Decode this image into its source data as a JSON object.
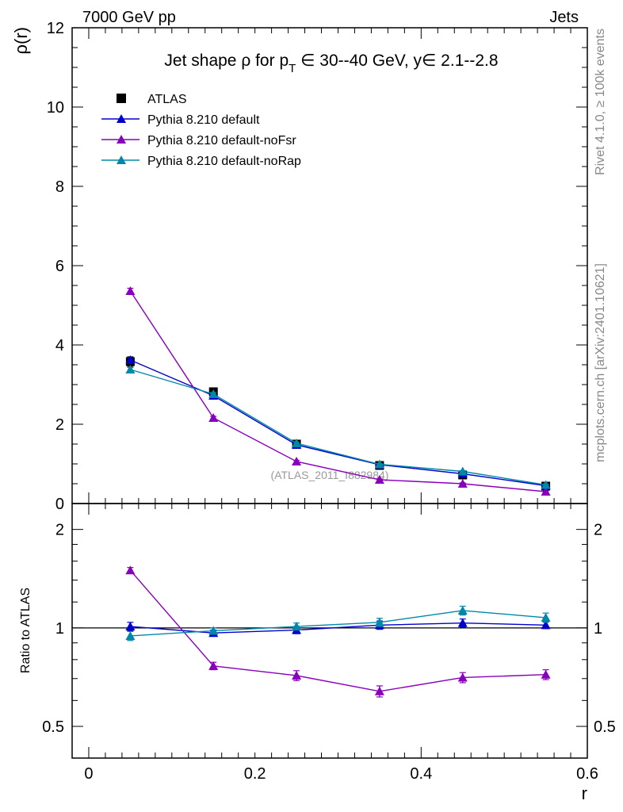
{
  "header": {
    "left": "7000 GeV pp",
    "right": "Jets"
  },
  "side_labels": {
    "rivet": "Rivet 4.1.0, ≥ 100k events",
    "mcplots": "mcplots.cern.ch [arXiv:2401.10621]"
  },
  "watermark": "(ATLAS_2011_I882984)",
  "colors": {
    "atlas": "#000000",
    "default": "#0000cc",
    "noFsr": "#8800bb",
    "noRap": "#0088aa"
  },
  "chart_data": [
    {
      "type": "line",
      "title": "Jet shape ρ for p_T ∈ 30--40 GeV, y∈ 2.1--2.8",
      "title_parts": {
        "a": "Jet shape ρ for p",
        "sub": "T",
        "b": " ∈ 30--40 GeV, y∈ 2.1--2.8"
      },
      "ylabel": "ρ(r)",
      "xlabel": "r",
      "xlim": [
        -0.02,
        0.6
      ],
      "ylim": [
        0,
        12
      ],
      "yticks": [
        0,
        2,
        4,
        6,
        8,
        10,
        12
      ],
      "ytick_labels": [
        "0",
        "2",
        "4",
        "6",
        "8",
        "10",
        "12"
      ],
      "x": [
        0.05,
        0.15,
        0.25,
        0.35,
        0.45,
        0.55
      ],
      "series": [
        {
          "name": "ATLAS",
          "key": "atlas",
          "marker": "square",
          "values": [
            3.58,
            2.82,
            1.5,
            0.96,
            0.72,
            0.44
          ],
          "errors": [
            0.12,
            0.08,
            0.05,
            0.04,
            0.03,
            0.02
          ]
        },
        {
          "name": "Pythia 8.210 default",
          "key": "default",
          "marker": "triangle",
          "values": [
            3.62,
            2.72,
            1.48,
            0.98,
            0.75,
            0.45
          ],
          "errors": [
            0.05,
            0.04,
            0.03,
            0.02,
            0.02,
            0.02
          ]
        },
        {
          "name": "Pythia 8.210 default-noFsr",
          "key": "noFsr",
          "marker": "triangle",
          "values": [
            5.36,
            2.16,
            1.06,
            0.6,
            0.5,
            0.3
          ],
          "errors": [
            0.07,
            0.04,
            0.03,
            0.02,
            0.02,
            0.02
          ]
        },
        {
          "name": "Pythia 8.210 default-noRap",
          "key": "noRap",
          "marker": "triangle",
          "values": [
            3.38,
            2.76,
            1.52,
            0.99,
            0.81,
            0.47
          ],
          "errors": [
            0.05,
            0.04,
            0.03,
            0.02,
            0.02,
            0.02
          ]
        }
      ]
    },
    {
      "type": "line",
      "title": "",
      "ylabel": "Ratio to ATLAS",
      "xlabel": "r",
      "xlim": [
        -0.02,
        0.6
      ],
      "ylim": [
        0.4,
        2.4
      ],
      "yscale": "log",
      "yticks": [
        0.5,
        1,
        2
      ],
      "ytick_labels": [
        "0.5",
        "1",
        "2"
      ],
      "xticks": [
        0,
        0.2,
        0.4,
        0.6
      ],
      "xtick_labels": [
        "0",
        "0.2",
        "0.4",
        "0.6"
      ],
      "x": [
        0.05,
        0.15,
        0.25,
        0.35,
        0.45,
        0.55
      ],
      "series": [
        {
          "name": "Pythia 8.210 default",
          "key": "default",
          "values": [
            1.01,
            0.965,
            0.985,
            1.02,
            1.035,
            1.02
          ],
          "errors": [
            0.03,
            0.02,
            0.025,
            0.03,
            0.03,
            0.025
          ]
        },
        {
          "name": "Pythia 8.210 default-noFsr",
          "key": "noFsr",
          "values": [
            1.5,
            0.765,
            0.715,
            0.64,
            0.705,
            0.72
          ],
          "errors": [
            0.03,
            0.02,
            0.025,
            0.025,
            0.025,
            0.025
          ]
        },
        {
          "name": "Pythia 8.210 default-noRap",
          "key": "noRap",
          "values": [
            0.945,
            0.98,
            1.01,
            1.04,
            1.13,
            1.075
          ],
          "errors": [
            0.03,
            0.02,
            0.025,
            0.03,
            0.035,
            0.035
          ]
        }
      ]
    }
  ]
}
